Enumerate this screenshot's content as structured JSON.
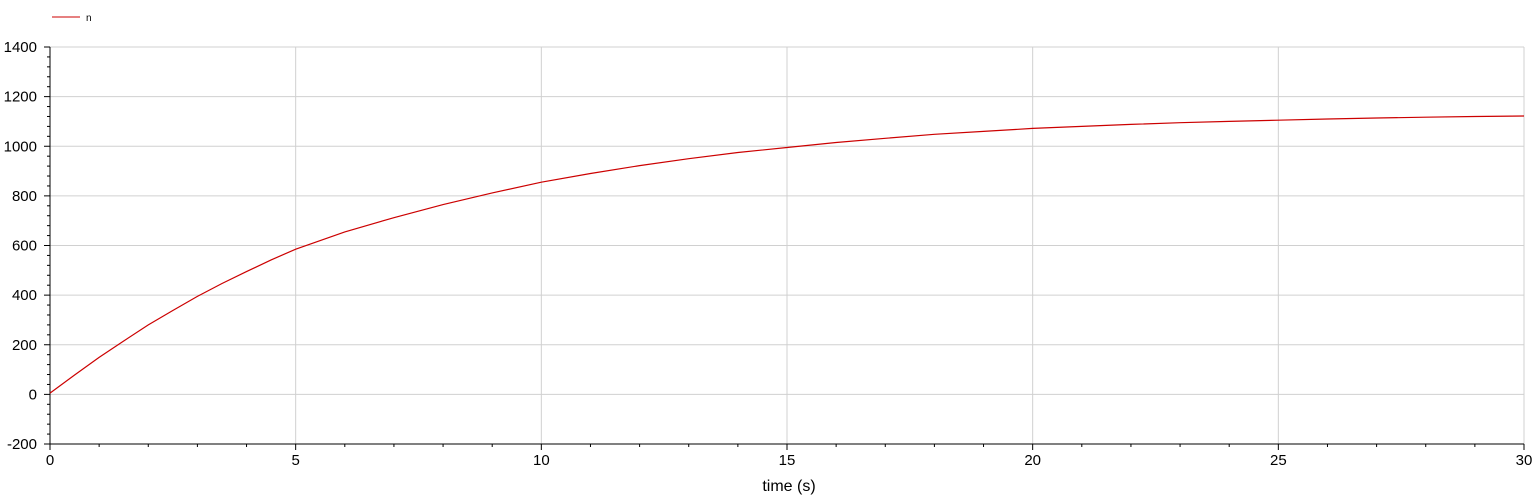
{
  "chart_data": {
    "type": "line",
    "title": "",
    "xlabel": "time (s)",
    "ylabel": "",
    "xlim": [
      0,
      30
    ],
    "ylim": [
      -200,
      1400
    ],
    "x_ticks": [
      0,
      5,
      10,
      15,
      20,
      25,
      30
    ],
    "y_ticks": [
      -200,
      0,
      200,
      400,
      600,
      800,
      1000,
      1200,
      1400
    ],
    "grid": true,
    "legend_position": "top-left",
    "series": [
      {
        "name": "n",
        "color": "#cc0000",
        "x": [
          0,
          0.5,
          1,
          1.5,
          2,
          2.5,
          3,
          3.5,
          4,
          4.5,
          5,
          6,
          7,
          8,
          9,
          10,
          11,
          12,
          13,
          14,
          15,
          16,
          17,
          18,
          19,
          20,
          21,
          22,
          23,
          24,
          25,
          26,
          27,
          28,
          29,
          30
        ],
        "y": [
          5,
          78,
          149,
          215,
          280,
          338,
          395,
          447,
          495,
          542,
          585,
          655,
          712,
          765,
          812,
          855,
          890,
          922,
          950,
          975,
          995,
          1015,
          1032,
          1048,
          1060,
          1072,
          1080,
          1088,
          1095,
          1100,
          1105,
          1110,
          1114,
          1117,
          1120,
          1122
        ]
      }
    ]
  }
}
